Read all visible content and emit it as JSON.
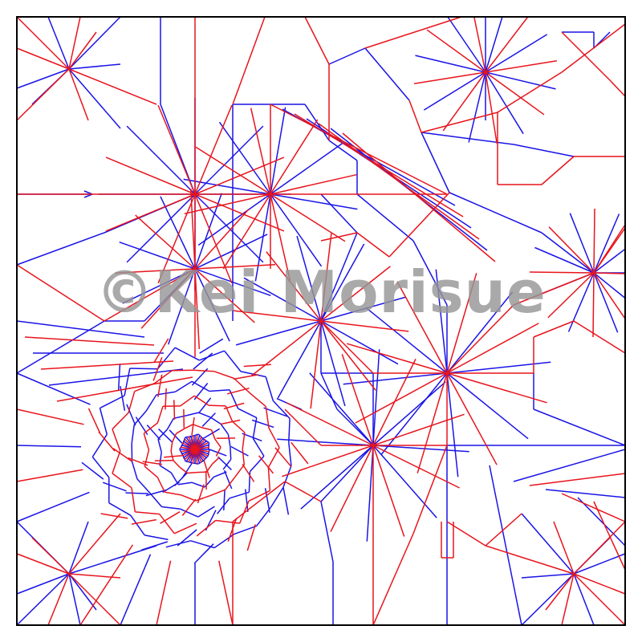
{
  "diagram": {
    "kind": "origami-crease-pattern",
    "colors": {
      "mountain": "#e8141c",
      "valley": "#1a14e6",
      "border": "#000000",
      "background": "#ffffff"
    }
  },
  "watermark": {
    "text": "©Kei Morisue"
  }
}
